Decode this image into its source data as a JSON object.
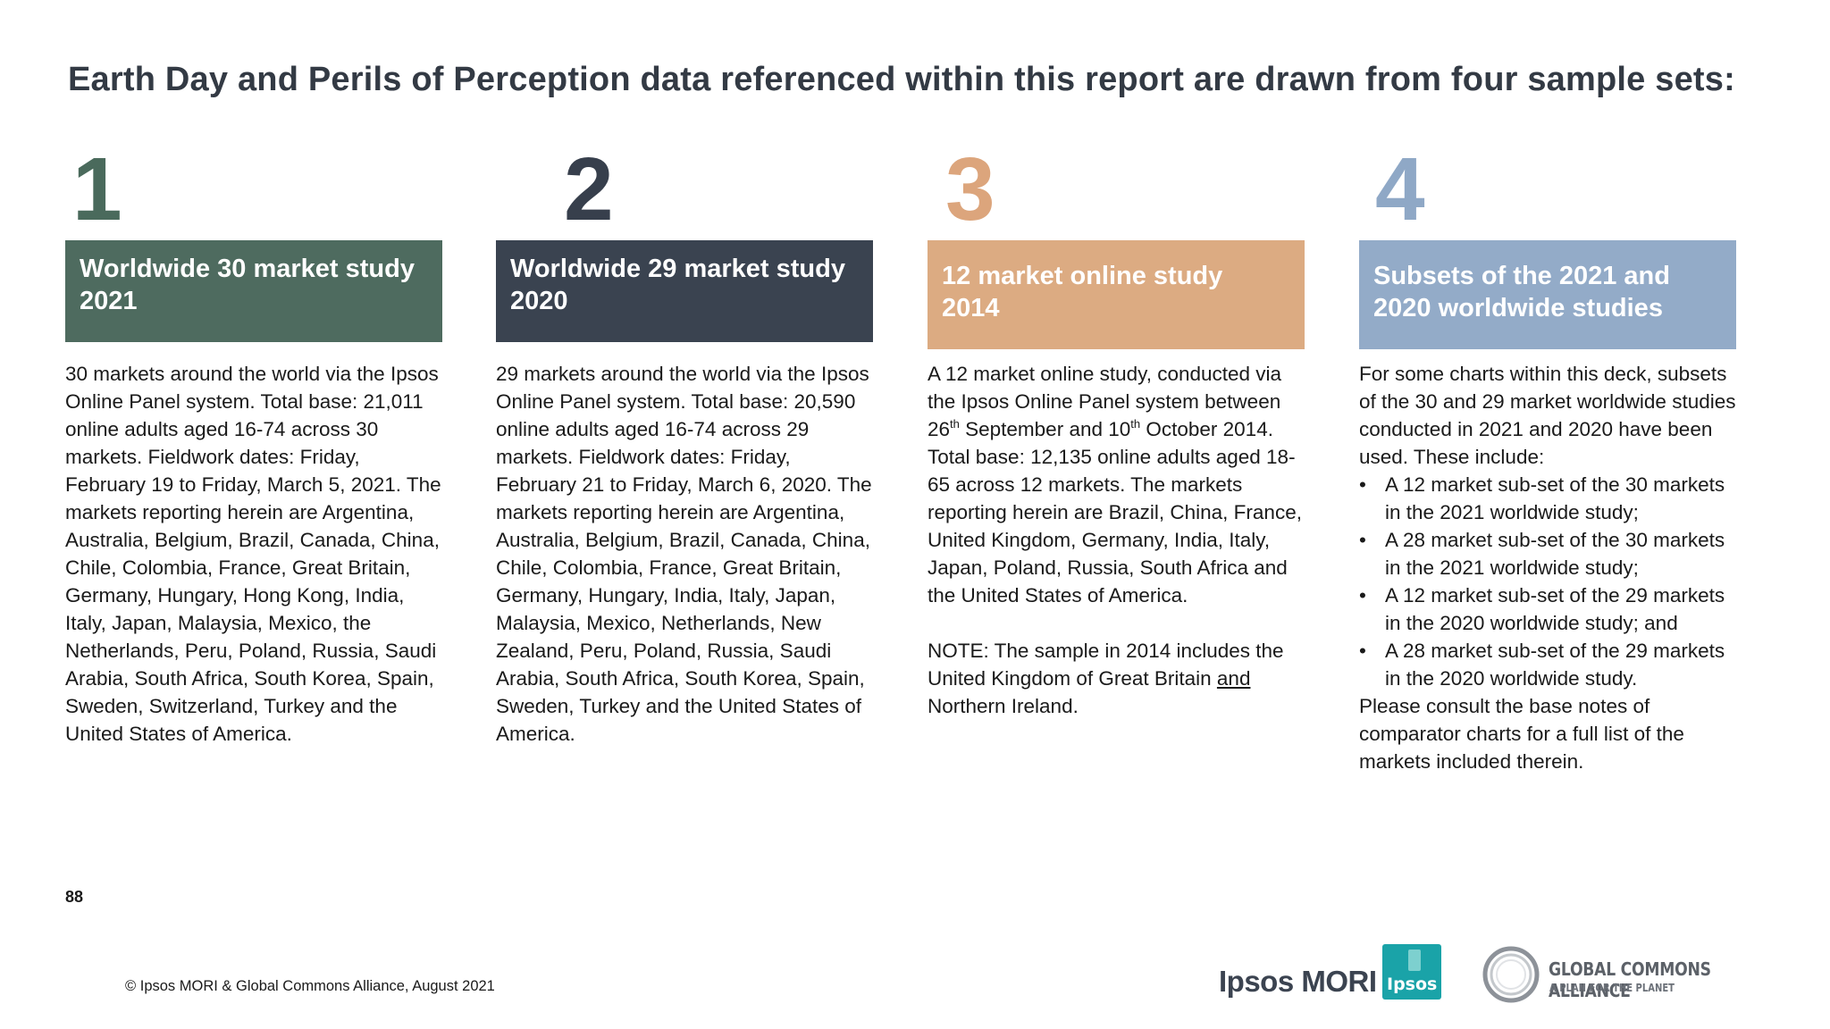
{
  "title": "Earth Day and Perils of Perception data referenced within this report are drawn from four sample sets:",
  "columns": [
    {
      "number": "1",
      "number_color": "#4a6a5c",
      "box_color": "#4e6b5f",
      "heading_line1": "Worldwide 30 market study",
      "heading_line2": "2021",
      "text": "30 markets around the world via the Ipsos Online Panel system. Total base: 21,011 online adults aged 16-74 across 30 markets. Fieldwork dates: Friday, February 19 to Friday, March 5, 2021. The markets reporting herein are Argentina, Australia, Belgium, Brazil, Canada, China, Chile, Colombia, France, Great Britain, Germany, Hungary, Hong Kong, India, Italy, Japan, Malaysia, Mexico, the Netherlands, Peru, Poland, Russia, Saudi Arabia, South Africa, South Korea, Spain, Sweden, Switzerland, Turkey and the United States of America."
    },
    {
      "number": "2",
      "number_color": "#373f4c",
      "box_color": "#3a4350",
      "heading_line1": "Worldwide 29 market study",
      "heading_line2": "2020",
      "text": "29 markets around the world via the Ipsos Online Panel system. Total base: 20,590 online adults aged 16-74 across 29 markets. Fieldwork dates: Friday, February 21 to Friday, March 6, 2020. The markets reporting herein are Argentina, Australia, Belgium, Brazil, Canada, China, Chile, Colombia, France, Great Britain, Germany, Hungary, India, Italy, Japan, Malaysia, Mexico, Netherlands, New Zealand, Peru, Poland, Russia, Saudi Arabia, South Africa, South Korea, Spain, Sweden, Turkey and the United States of America."
    },
    {
      "number": "3",
      "number_color": "#dca57c",
      "box_color": "#dcab82",
      "heading_line1": "12 market online study",
      "heading_line2": "2014",
      "text_a": "A 12 market online study, conducted via the Ipsos Online Panel system between 26",
      "sup1": "th",
      "text_b": " September and 10",
      "sup2": "th",
      "text_c": " October 2014. Total base: 12,135 online adults aged 18-65 across 12 markets. The markets reporting herein are Brazil, China, France, United Kingdom, Germany, India, Italy, Japan, Poland, Russia, South Africa and the United States of America.",
      "note_a": "NOTE: The sample in 2014 includes the United Kingdom of Great Britain ",
      "note_underlined": "and",
      "note_b": " Northern Ireland."
    },
    {
      "number": "4",
      "number_color": "#8fa8c6",
      "box_color": "#93abc8",
      "heading_line1": "Subsets of the 2021 and",
      "heading_line2": "2020 worldwide studies",
      "intro": "For some charts within this deck, subsets of the 30 and 29 market worldwide studies conducted in 2021 and 2020 have been used. These include:",
      "bullets": [
        "A 12 market sub-set of the 30 markets in the 2021 worldwide study;",
        "A 28 market sub-set of the 30 markets in the 2021 worldwide study;",
        "A 12 market sub-set of the 29 markets in the 2020 worldwide study; and",
        "A 28 market sub-set of the 29 markets in the 2020 worldwide study."
      ],
      "outro": "Please consult the base notes of comparator charts for a full list of the markets included therein."
    }
  ],
  "page_number": "88",
  "footer": "© Ipsos MORI & Global Commons Alliance, August 2021",
  "logos": {
    "ipsos_mori": "Ipsos MORI",
    "ipsos": "Ipsos",
    "gca_name": "GLOBAL COMMONS ALLIANCE",
    "gca_tagline": "A PLAN FOR THE PLANET"
  }
}
